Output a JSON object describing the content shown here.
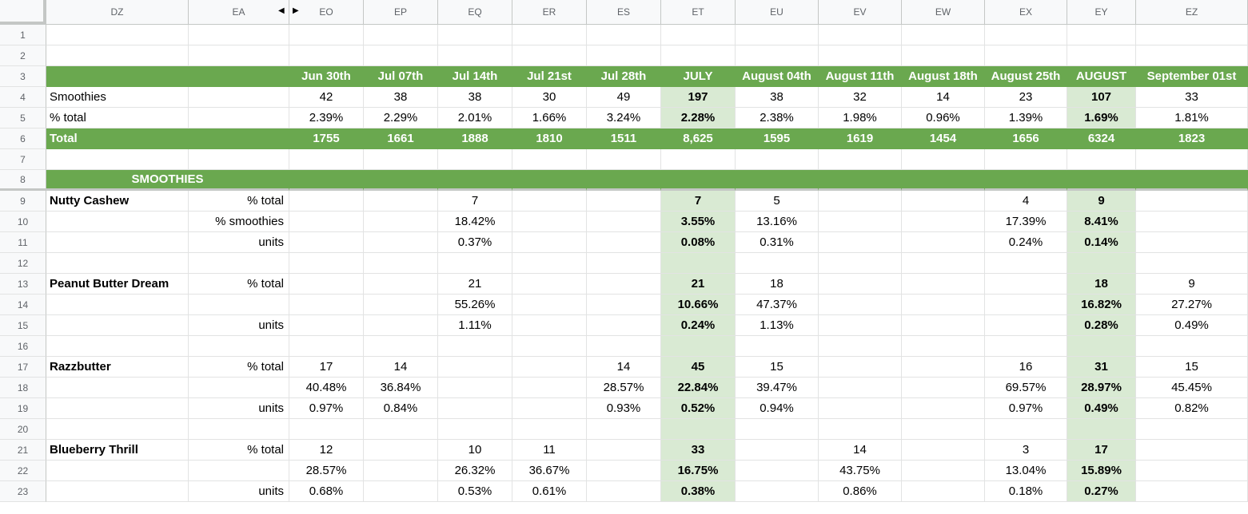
{
  "columns": [
    "DZ",
    "EA",
    "EO",
    "EP",
    "EQ",
    "ER",
    "ES",
    "ET",
    "EU",
    "EV",
    "EW",
    "EX",
    "EY",
    "EZ"
  ],
  "rows": [
    "1",
    "2",
    "3",
    "4",
    "5",
    "6",
    "7",
    "8",
    "9",
    "10",
    "11",
    "12",
    "13",
    "14",
    "15",
    "16",
    "17",
    "18",
    "19",
    "20",
    "21",
    "22",
    "23"
  ],
  "hidden_columns_arrows": {
    "left": "◀",
    "right": "▶"
  },
  "header_row": [
    "",
    "",
    "Jun 30th",
    "Jul 07th",
    "Jul 14th",
    "Jul 21st",
    "Jul 28th",
    "JULY",
    "August 04th",
    "August 11th",
    "August 18th",
    "August 25th",
    "AUGUST",
    "September 01st"
  ],
  "summary": {
    "smoothies": [
      "Smoothies",
      "",
      "42",
      "38",
      "38",
      "30",
      "49",
      "197",
      "38",
      "32",
      "14",
      "23",
      "107",
      "33"
    ],
    "pct_total": [
      "% total",
      "",
      "2.39%",
      "2.29%",
      "2.01%",
      "1.66%",
      "3.24%",
      "2.28%",
      "2.38%",
      "1.98%",
      "0.96%",
      "1.39%",
      "1.69%",
      "1.81%"
    ],
    "total": [
      "Total",
      "",
      "1755",
      "1661",
      "1888",
      "1810",
      "1511",
      "8,625",
      "1595",
      "1619",
      "1454",
      "1656",
      "6324",
      "1823"
    ]
  },
  "section_title": "SMOOTHIES",
  "products": [
    {
      "name": "Nutty Cashew",
      "rows": [
        [
          "% total",
          "",
          "",
          "7",
          "",
          "",
          "7",
          "5",
          "",
          "",
          "4",
          "9",
          ""
        ],
        [
          "% smoothies",
          "",
          "",
          "18.42%",
          "",
          "",
          "3.55%",
          "13.16%",
          "",
          "",
          "17.39%",
          "8.41%",
          ""
        ],
        [
          "units",
          "",
          "",
          "0.37%",
          "",
          "",
          "0.08%",
          "0.31%",
          "",
          "",
          "0.24%",
          "0.14%",
          ""
        ]
      ]
    },
    {
      "name": "Peanut Butter Dream",
      "rows": [
        [
          "% total",
          "",
          "",
          "21",
          "",
          "",
          "21",
          "18",
          "",
          "",
          "",
          "18",
          "9"
        ],
        [
          "",
          "",
          "",
          "55.26%",
          "",
          "",
          "10.66%",
          "47.37%",
          "",
          "",
          "",
          "16.82%",
          "27.27%"
        ],
        [
          "units",
          "",
          "",
          "1.11%",
          "",
          "",
          "0.24%",
          "1.13%",
          "",
          "",
          "",
          "0.28%",
          "0.49%"
        ]
      ]
    },
    {
      "name": "Razzbutter",
      "rows": [
        [
          "% total",
          "17",
          "14",
          "",
          "",
          "14",
          "45",
          "15",
          "",
          "",
          "16",
          "31",
          "15"
        ],
        [
          "",
          "40.48%",
          "36.84%",
          "",
          "",
          "28.57%",
          "22.84%",
          "39.47%",
          "",
          "",
          "69.57%",
          "28.97%",
          "45.45%"
        ],
        [
          "units",
          "0.97%",
          "0.84%",
          "",
          "",
          "0.93%",
          "0.52%",
          "0.94%",
          "",
          "",
          "0.97%",
          "0.49%",
          "0.82%"
        ]
      ]
    },
    {
      "name": "Blueberry Thrill",
      "rows": [
        [
          "% total",
          "12",
          "",
          "10",
          "11",
          "",
          "33",
          "",
          "14",
          "",
          "3",
          "17",
          ""
        ],
        [
          "",
          "28.57%",
          "",
          "26.32%",
          "36.67%",
          "",
          "16.75%",
          "",
          "43.75%",
          "",
          "13.04%",
          "15.89%",
          ""
        ],
        [
          "units",
          "0.68%",
          "",
          "0.53%",
          "0.61%",
          "",
          "0.38%",
          "",
          "0.86%",
          "",
          "0.18%",
          "0.27%",
          ""
        ]
      ]
    }
  ]
}
